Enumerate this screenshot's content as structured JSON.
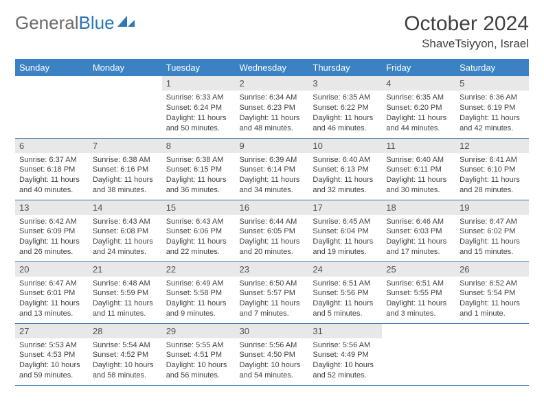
{
  "logo": {
    "text1": "General",
    "text2": "Blue"
  },
  "title": "October 2024",
  "location": "ShaveTsiyyon, Israel",
  "colors": {
    "header_bg": "#3b82c4",
    "header_text": "#ffffff",
    "daynum_bg": "#e8e8e8",
    "border": "#2f6fa8",
    "logo_gray": "#6b6b6b",
    "logo_blue": "#2a75bb"
  },
  "day_headers": [
    "Sunday",
    "Monday",
    "Tuesday",
    "Wednesday",
    "Thursday",
    "Friday",
    "Saturday"
  ],
  "weeks": [
    [
      null,
      null,
      {
        "n": "1",
        "sr": "6:33 AM",
        "ss": "6:24 PM",
        "dl": "11 hours and 50 minutes."
      },
      {
        "n": "2",
        "sr": "6:34 AM",
        "ss": "6:23 PM",
        "dl": "11 hours and 48 minutes."
      },
      {
        "n": "3",
        "sr": "6:35 AM",
        "ss": "6:22 PM",
        "dl": "11 hours and 46 minutes."
      },
      {
        "n": "4",
        "sr": "6:35 AM",
        "ss": "6:20 PM",
        "dl": "11 hours and 44 minutes."
      },
      {
        "n": "5",
        "sr": "6:36 AM",
        "ss": "6:19 PM",
        "dl": "11 hours and 42 minutes."
      }
    ],
    [
      {
        "n": "6",
        "sr": "6:37 AM",
        "ss": "6:18 PM",
        "dl": "11 hours and 40 minutes."
      },
      {
        "n": "7",
        "sr": "6:38 AM",
        "ss": "6:16 PM",
        "dl": "11 hours and 38 minutes."
      },
      {
        "n": "8",
        "sr": "6:38 AM",
        "ss": "6:15 PM",
        "dl": "11 hours and 36 minutes."
      },
      {
        "n": "9",
        "sr": "6:39 AM",
        "ss": "6:14 PM",
        "dl": "11 hours and 34 minutes."
      },
      {
        "n": "10",
        "sr": "6:40 AM",
        "ss": "6:13 PM",
        "dl": "11 hours and 32 minutes."
      },
      {
        "n": "11",
        "sr": "6:40 AM",
        "ss": "6:11 PM",
        "dl": "11 hours and 30 minutes."
      },
      {
        "n": "12",
        "sr": "6:41 AM",
        "ss": "6:10 PM",
        "dl": "11 hours and 28 minutes."
      }
    ],
    [
      {
        "n": "13",
        "sr": "6:42 AM",
        "ss": "6:09 PM",
        "dl": "11 hours and 26 minutes."
      },
      {
        "n": "14",
        "sr": "6:43 AM",
        "ss": "6:08 PM",
        "dl": "11 hours and 24 minutes."
      },
      {
        "n": "15",
        "sr": "6:43 AM",
        "ss": "6:06 PM",
        "dl": "11 hours and 22 minutes."
      },
      {
        "n": "16",
        "sr": "6:44 AM",
        "ss": "6:05 PM",
        "dl": "11 hours and 20 minutes."
      },
      {
        "n": "17",
        "sr": "6:45 AM",
        "ss": "6:04 PM",
        "dl": "11 hours and 19 minutes."
      },
      {
        "n": "18",
        "sr": "6:46 AM",
        "ss": "6:03 PM",
        "dl": "11 hours and 17 minutes."
      },
      {
        "n": "19",
        "sr": "6:47 AM",
        "ss": "6:02 PM",
        "dl": "11 hours and 15 minutes."
      }
    ],
    [
      {
        "n": "20",
        "sr": "6:47 AM",
        "ss": "6:01 PM",
        "dl": "11 hours and 13 minutes."
      },
      {
        "n": "21",
        "sr": "6:48 AM",
        "ss": "5:59 PM",
        "dl": "11 hours and 11 minutes."
      },
      {
        "n": "22",
        "sr": "6:49 AM",
        "ss": "5:58 PM",
        "dl": "11 hours and 9 minutes."
      },
      {
        "n": "23",
        "sr": "6:50 AM",
        "ss": "5:57 PM",
        "dl": "11 hours and 7 minutes."
      },
      {
        "n": "24",
        "sr": "6:51 AM",
        "ss": "5:56 PM",
        "dl": "11 hours and 5 minutes."
      },
      {
        "n": "25",
        "sr": "6:51 AM",
        "ss": "5:55 PM",
        "dl": "11 hours and 3 minutes."
      },
      {
        "n": "26",
        "sr": "6:52 AM",
        "ss": "5:54 PM",
        "dl": "11 hours and 1 minute."
      }
    ],
    [
      {
        "n": "27",
        "sr": "5:53 AM",
        "ss": "4:53 PM",
        "dl": "10 hours and 59 minutes."
      },
      {
        "n": "28",
        "sr": "5:54 AM",
        "ss": "4:52 PM",
        "dl": "10 hours and 58 minutes."
      },
      {
        "n": "29",
        "sr": "5:55 AM",
        "ss": "4:51 PM",
        "dl": "10 hours and 56 minutes."
      },
      {
        "n": "30",
        "sr": "5:56 AM",
        "ss": "4:50 PM",
        "dl": "10 hours and 54 minutes."
      },
      {
        "n": "31",
        "sr": "5:56 AM",
        "ss": "4:49 PM",
        "dl": "10 hours and 52 minutes."
      },
      null,
      null
    ]
  ],
  "labels": {
    "sunrise": "Sunrise:",
    "sunset": "Sunset:",
    "daylight": "Daylight:"
  }
}
